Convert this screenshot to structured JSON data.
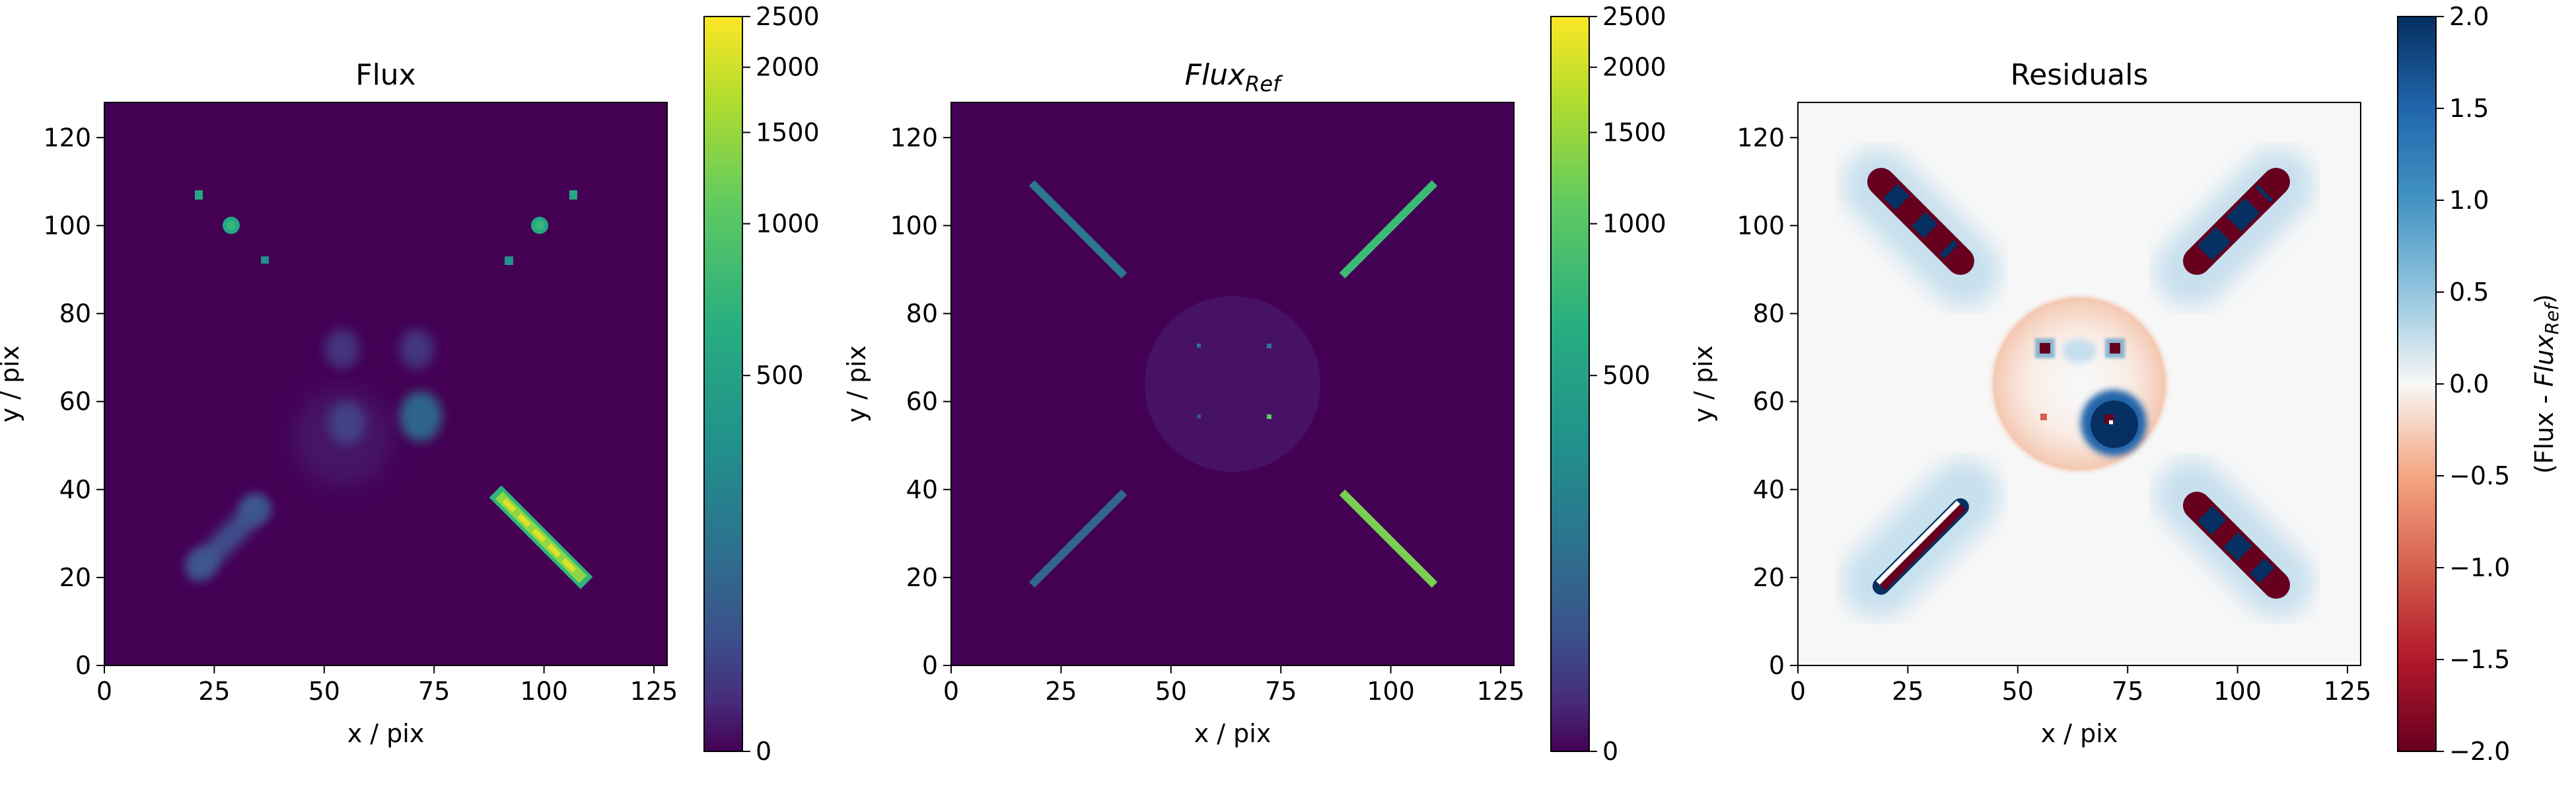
{
  "figure": {
    "panels": [
      {
        "title": "Flux",
        "xlabel": "x / pix",
        "ylabel": "y / pix"
      },
      {
        "title_base": "Flux",
        "title_sub": "Ref",
        "xlabel": "x / pix",
        "ylabel": "y / pix"
      },
      {
        "title": "Residuals",
        "xlabel": "x / pix",
        "ylabel": "y / pix"
      }
    ],
    "colorbars": [
      {
        "ticks": [
          "0",
          "500",
          "1000",
          "1500",
          "2000",
          "2500"
        ],
        "label": ""
      },
      {
        "ticks": [
          "0",
          "500",
          "1000",
          "1500",
          "2000",
          "2500"
        ],
        "label": ""
      },
      {
        "ticks": [
          "−2.0",
          "−1.5",
          "−1.0",
          "−0.5",
          "0.0",
          "0.5",
          "1.0",
          "1.5",
          "2.0"
        ],
        "label_prefix": "(Flux - ",
        "label_base": "Flux",
        "label_sub": "Ref",
        "label_suffix": ")"
      }
    ]
  },
  "chart_data": [
    {
      "type": "heatmap",
      "title": "Flux",
      "xlabel": "x / pix",
      "ylabel": "y / pix",
      "xlim": [
        0,
        128
      ],
      "ylim": [
        0,
        128
      ],
      "xticks": [
        0,
        25,
        50,
        75,
        100,
        125
      ],
      "yticks": [
        0,
        20,
        40,
        60,
        80,
        100,
        120
      ],
      "colormap": "viridis",
      "color_scale": "asinh-like",
      "clim": [
        0,
        2500
      ],
      "colorbar_ticks": [
        0,
        500,
        1000,
        1500,
        2000,
        2500
      ],
      "features": [
        {
          "kind": "point",
          "x": 21,
          "y": 106,
          "value": 900
        },
        {
          "kind": "point",
          "x": 29,
          "y": 99,
          "value": 700
        },
        {
          "kind": "point",
          "x": 36,
          "y": 92,
          "value": 650
        },
        {
          "kind": "point",
          "x": 91,
          "y": 92,
          "value": 650
        },
        {
          "kind": "point",
          "x": 98,
          "y": 99,
          "value": 700
        },
        {
          "kind": "point",
          "x": 106,
          "y": 106,
          "value": 900
        },
        {
          "kind": "blob",
          "x": 54,
          "y": 74,
          "value": 60
        },
        {
          "kind": "blob",
          "x": 71,
          "y": 74,
          "value": 60
        },
        {
          "kind": "blob",
          "x": 55,
          "y": 57,
          "value": 60
        },
        {
          "kind": "blob",
          "x": 72,
          "y": 57,
          "value": 300
        },
        {
          "kind": "blob",
          "x": 36,
          "y": 36,
          "value": 200
        },
        {
          "kind": "blob",
          "x": 22,
          "y": 23,
          "value": 200
        },
        {
          "kind": "line",
          "x0": 90,
          "y0": 38,
          "x1": 108,
          "y1": 20,
          "value": 1800
        }
      ]
    },
    {
      "type": "heatmap",
      "title": "Flux_Ref",
      "xlabel": "x / pix",
      "ylabel": "y / pix",
      "xlim": [
        0,
        128
      ],
      "ylim": [
        0,
        128
      ],
      "xticks": [
        0,
        25,
        50,
        75,
        100,
        125
      ],
      "yticks": [
        0,
        20,
        40,
        60,
        80,
        100,
        120
      ],
      "colormap": "viridis",
      "color_scale": "asinh-like",
      "clim": [
        0,
        2500
      ],
      "colorbar_ticks": [
        0,
        500,
        1000,
        1500,
        2000,
        2500
      ],
      "features": [
        {
          "kind": "disk",
          "x": 64,
          "y": 64,
          "r": 20,
          "value": 15
        },
        {
          "kind": "point",
          "x": 56,
          "y": 72,
          "value": 500
        },
        {
          "kind": "point",
          "x": 72,
          "y": 72,
          "value": 500
        },
        {
          "kind": "point",
          "x": 56,
          "y": 56,
          "value": 500
        },
        {
          "kind": "point",
          "x": 72,
          "y": 56,
          "value": 900
        },
        {
          "kind": "line",
          "x0": 18,
          "y0": 110,
          "x1": 39,
          "y1": 89,
          "value": 200
        },
        {
          "kind": "line",
          "x0": 89,
          "y0": 89,
          "x1": 110,
          "y1": 110,
          "value": 500
        },
        {
          "kind": "line",
          "x0": 18,
          "y0": 18,
          "x1": 39,
          "y1": 39,
          "value": 200
        },
        {
          "kind": "line",
          "x0": 89,
          "y0": 39,
          "x1": 110,
          "y1": 18,
          "value": 900
        }
      ]
    },
    {
      "type": "heatmap",
      "title": "Residuals",
      "xlabel": "x / pix",
      "ylabel": "y / pix",
      "xlim": [
        0,
        128
      ],
      "ylim": [
        0,
        128
      ],
      "xticks": [
        0,
        25,
        50,
        75,
        100,
        125
      ],
      "yticks": [
        0,
        20,
        40,
        60,
        80,
        100,
        120
      ],
      "colormap": "RdBu",
      "clim": [
        -2.0,
        2.0
      ],
      "colorbar_ticks": [
        -2.0,
        -1.5,
        -1.0,
        -0.5,
        0.0,
        0.5,
        1.0,
        1.5,
        2.0
      ],
      "colorbar_label": "(Flux - Flux_Ref)",
      "features": [
        {
          "kind": "stripe",
          "x0": 19,
          "y0": 109,
          "x1": 38,
          "y1": 90,
          "value": -2.0
        },
        {
          "kind": "stripe",
          "x0": 89,
          "y0": 90,
          "x1": 109,
          "y1": 109,
          "value": -2.0
        },
        {
          "kind": "stripe",
          "x0": 19,
          "y0": 19,
          "x1": 38,
          "y1": 38,
          "value": -2.0
        },
        {
          "kind": "stripe",
          "x0": 89,
          "y0": 38,
          "x1": 109,
          "y1": 19,
          "value": -2.0
        },
        {
          "kind": "ring",
          "x": 64,
          "y": 64,
          "r": 20,
          "value": -0.2
        },
        {
          "kind": "blob",
          "x": 72,
          "y": 57,
          "value": 2.0
        },
        {
          "kind": "point",
          "x": 56,
          "y": 72,
          "value": -2.0
        },
        {
          "kind": "point",
          "x": 72,
          "y": 72,
          "value": -2.0
        },
        {
          "kind": "point",
          "x": 56,
          "y": 56,
          "value": -1.0
        },
        {
          "kind": "point",
          "x": 72,
          "y": 56,
          "value": -2.0
        }
      ]
    }
  ],
  "colors": {
    "viridis_low": "#440154",
    "viridis_high": "#fde725",
    "rdbu_low": "#67001f",
    "rdbu_mid": "#f7f7f7",
    "rdbu_high": "#053061"
  }
}
